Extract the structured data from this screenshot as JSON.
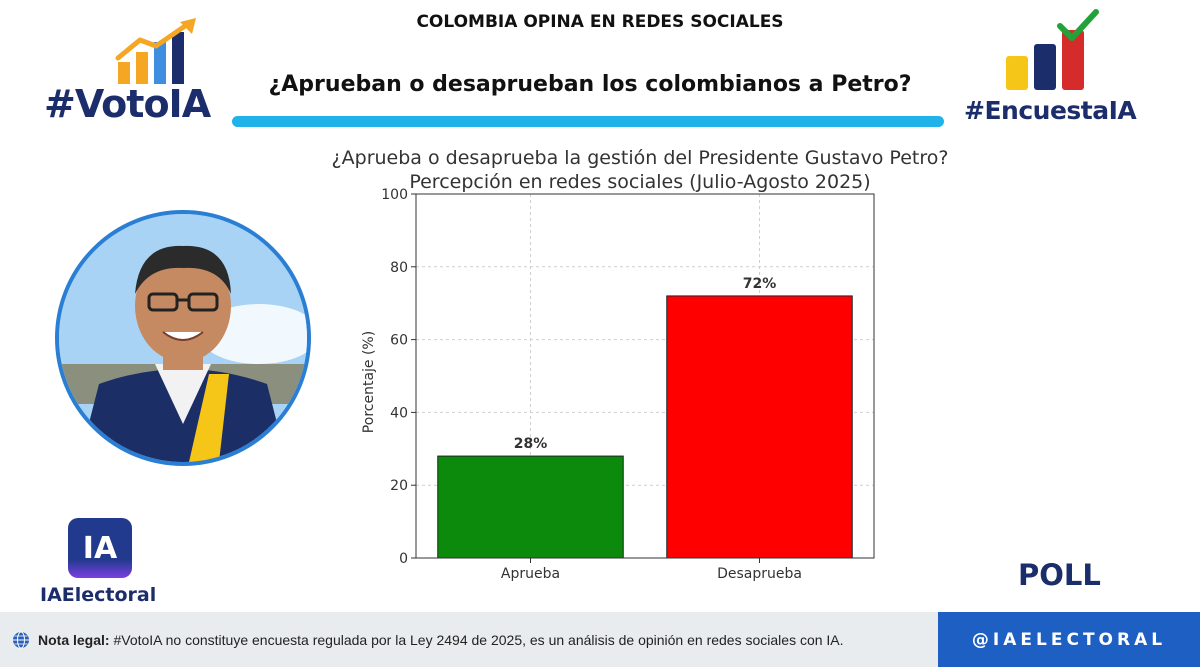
{
  "header": {
    "top_title": "COLOMBIA OPINA EN REDES SOCIALES",
    "headline": "¿Aprueban o desaprueban los colombianos a Petro?"
  },
  "logos": {
    "left": "#VotoIA",
    "right": "#EncuestaIA",
    "ia_badge": "IA",
    "ia_brand": "IAElectoral",
    "poll": "POLL"
  },
  "chart_data": {
    "type": "bar",
    "title": "¿Aprueba o desaprueba la gestión del Presidente Gustavo Petro?",
    "subtitle": "Percepción en redes sociales (Julio-Agosto 2025)",
    "categories": [
      "Aprueba",
      "Desaprueba"
    ],
    "values": [
      28,
      72
    ],
    "value_labels": [
      "28%",
      "72%"
    ],
    "colors": [
      "#0b8a0b",
      "#ff0000"
    ],
    "xlabel": "",
    "ylabel": "Porcentaje (%)",
    "ylim": [
      0,
      100
    ],
    "yticks": [
      0,
      20,
      40,
      60,
      80,
      100
    ],
    "grid": true
  },
  "footer": {
    "legal_label": "Nota legal:",
    "legal_text": " #VotoIA no constituye encuesta regulada por la Ley 2494 de 2025, es un análisis de opinión en redes sociales con IA.",
    "handle": "@IAELECTORAL"
  },
  "colors": {
    "navy": "#1c2d6b",
    "accent_blue": "#1fb3ea",
    "footer_blue": "#1e5fc4"
  }
}
